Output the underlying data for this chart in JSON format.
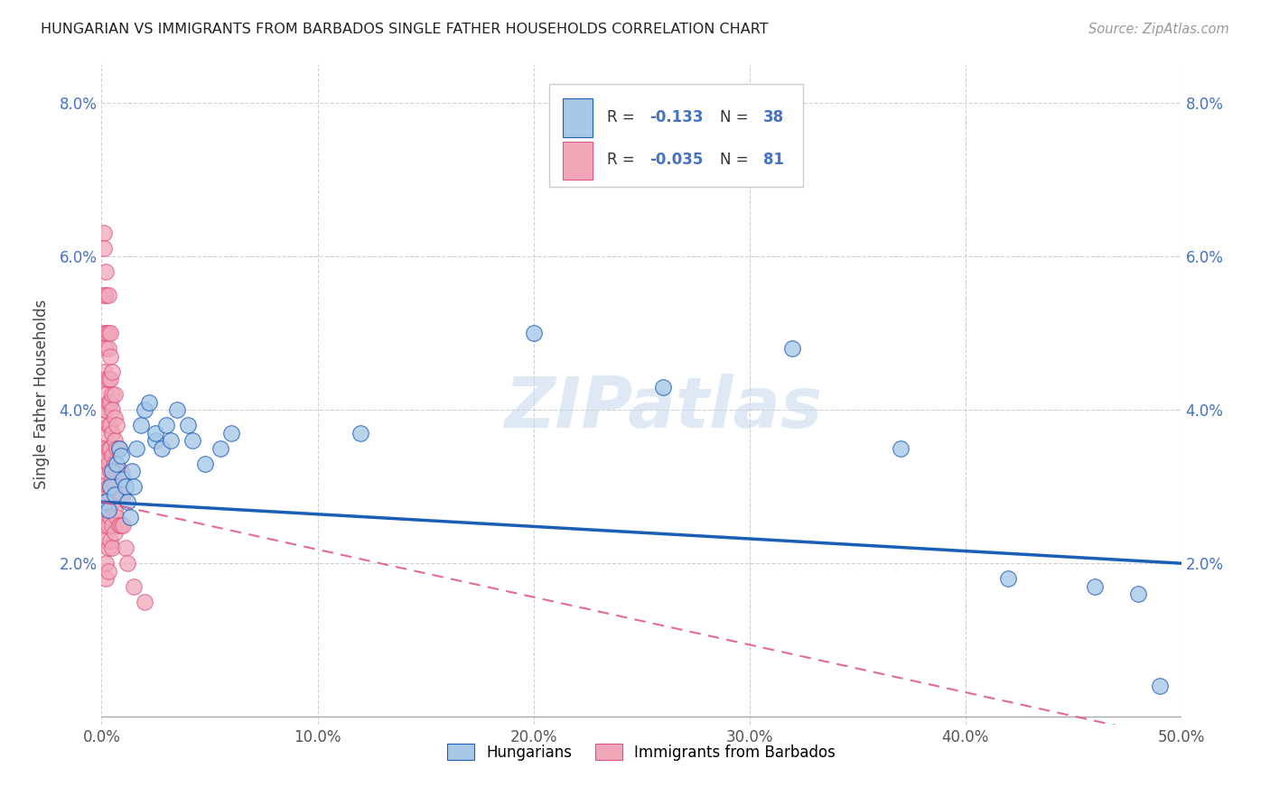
{
  "title": "HUNGARIAN VS IMMIGRANTS FROM BARBADOS SINGLE FATHER HOUSEHOLDS CORRELATION CHART",
  "source": "Source: ZipAtlas.com",
  "ylabel": "Single Father Households",
  "xlabel_ticks": [
    "0.0%",
    "10.0%",
    "20.0%",
    "30.0%",
    "40.0%",
    "50.0%"
  ],
  "ylabel_ticks_left": [
    "",
    "2.0%",
    "4.0%",
    "6.0%",
    "8.0%"
  ],
  "ylabel_ticks_right": [
    "",
    "2.0%",
    "4.0%",
    "6.0%",
    "8.0%"
  ],
  "xlim": [
    0.0,
    0.5
  ],
  "ylim": [
    -0.001,
    0.085
  ],
  "legend_r1_val": "-0.133",
  "legend_n1_val": "38",
  "legend_r2_val": "-0.035",
  "legend_n2_val": "81",
  "color_hungarian": "#a8c8e8",
  "color_barbados": "#f0a8b8",
  "color_line1": "#1a5eb8",
  "color_line2": "#e05080",
  "watermark": "ZIPatlas",
  "background_color": "#ffffff",
  "grid_color": "#d0d0d0",
  "hungarian_x": [
    0.002,
    0.003,
    0.004,
    0.005,
    0.006,
    0.007,
    0.008,
    0.009,
    0.01,
    0.011,
    0.012,
    0.013,
    0.014,
    0.015,
    0.016,
    0.018,
    0.02,
    0.022,
    0.025,
    0.025,
    0.028,
    0.03,
    0.032,
    0.035,
    0.04,
    0.042,
    0.048,
    0.055,
    0.06,
    0.12,
    0.2,
    0.26,
    0.32,
    0.37,
    0.42,
    0.46,
    0.48,
    0.49
  ],
  "hungarian_y": [
    0.028,
    0.027,
    0.03,
    0.032,
    0.029,
    0.033,
    0.035,
    0.034,
    0.031,
    0.03,
    0.028,
    0.026,
    0.032,
    0.03,
    0.035,
    0.038,
    0.04,
    0.041,
    0.036,
    0.037,
    0.035,
    0.038,
    0.036,
    0.04,
    0.038,
    0.036,
    0.033,
    0.035,
    0.037,
    0.037,
    0.05,
    0.043,
    0.048,
    0.035,
    0.018,
    0.017,
    0.016,
    0.004
  ],
  "barbados_x": [
    0.001,
    0.001,
    0.001,
    0.001,
    0.001,
    0.001,
    0.001,
    0.001,
    0.002,
    0.002,
    0.002,
    0.002,
    0.002,
    0.002,
    0.002,
    0.002,
    0.002,
    0.002,
    0.002,
    0.002,
    0.002,
    0.002,
    0.002,
    0.002,
    0.003,
    0.003,
    0.003,
    0.003,
    0.003,
    0.003,
    0.003,
    0.003,
    0.003,
    0.003,
    0.003,
    0.003,
    0.003,
    0.004,
    0.004,
    0.004,
    0.004,
    0.004,
    0.004,
    0.004,
    0.004,
    0.004,
    0.004,
    0.005,
    0.005,
    0.005,
    0.005,
    0.005,
    0.005,
    0.005,
    0.005,
    0.005,
    0.006,
    0.006,
    0.006,
    0.006,
    0.006,
    0.006,
    0.006,
    0.007,
    0.007,
    0.007,
    0.007,
    0.007,
    0.008,
    0.008,
    0.008,
    0.008,
    0.009,
    0.009,
    0.009,
    0.01,
    0.01,
    0.011,
    0.012,
    0.015,
    0.02
  ],
  "barbados_y": [
    0.063,
    0.061,
    0.055,
    0.05,
    0.045,
    0.04,
    0.035,
    0.03,
    0.058,
    0.055,
    0.05,
    0.048,
    0.044,
    0.042,
    0.04,
    0.037,
    0.034,
    0.032,
    0.029,
    0.027,
    0.025,
    0.023,
    0.02,
    0.018,
    0.055,
    0.05,
    0.048,
    0.044,
    0.041,
    0.038,
    0.035,
    0.033,
    0.03,
    0.028,
    0.025,
    0.022,
    0.019,
    0.05,
    0.047,
    0.044,
    0.041,
    0.038,
    0.035,
    0.032,
    0.029,
    0.026,
    0.023,
    0.045,
    0.042,
    0.04,
    0.037,
    0.034,
    0.031,
    0.028,
    0.025,
    0.022,
    0.042,
    0.039,
    0.036,
    0.033,
    0.03,
    0.027,
    0.024,
    0.038,
    0.035,
    0.032,
    0.029,
    0.026,
    0.035,
    0.032,
    0.029,
    0.025,
    0.032,
    0.029,
    0.025,
    0.029,
    0.025,
    0.022,
    0.02,
    0.017,
    0.015
  ]
}
